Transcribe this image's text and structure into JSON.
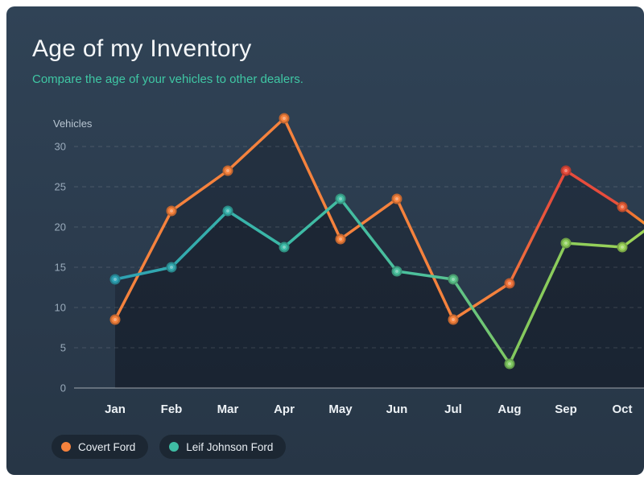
{
  "card": {
    "title": "Age of my Inventory",
    "subtitle": "Compare the age of your vehicles to other dealers.",
    "accent": "#3fc7a4",
    "bg_top": "#304356",
    "bg_bottom": "#273646"
  },
  "chart_data": {
    "type": "line",
    "title": "Age of my Inventory",
    "subtitle": "Compare the age of your vehicles to other dealers.",
    "xlabel": "",
    "ylabel": "Vehicles",
    "categories": [
      "Jan",
      "Feb",
      "Mar",
      "Apr",
      "May",
      "Jun",
      "Jul",
      "Aug",
      "Sep",
      "Oct"
    ],
    "y_ticks": [
      0,
      5,
      10,
      15,
      20,
      25,
      30
    ],
    "ylim": [
      0,
      35
    ],
    "grid": "dashed-horizontal",
    "legend_position": "bottom-left",
    "series": [
      {
        "name": "Covert Ford",
        "color": "#f5823d",
        "values": [
          8.5,
          22,
          27,
          33.5,
          18.5,
          23.5,
          8.5,
          13,
          27,
          22.5
        ],
        "edge_value": 20.5,
        "gradient": [
          [
            0,
            "#f5823d"
          ],
          [
            0.72,
            "#f5823d"
          ],
          [
            0.83,
            "#e74c3c"
          ],
          [
            0.94,
            "#e74c3c"
          ],
          [
            1,
            "#f58a2e"
          ]
        ]
      },
      {
        "name": "Leif Johnson Ford",
        "color": "#3fbca4",
        "values": [
          13.5,
          15,
          22,
          17.5,
          23.5,
          14.5,
          13.5,
          3,
          18,
          17.5
        ],
        "edge_value": 19.5,
        "gradient": [
          [
            0,
            "#2ea1b3"
          ],
          [
            0.33,
            "#3cbaa6"
          ],
          [
            0.6,
            "#4fc19a"
          ],
          [
            0.76,
            "#84c95d"
          ],
          [
            1,
            "#9ed458"
          ]
        ]
      }
    ]
  },
  "legend": {
    "items": [
      {
        "label": "Covert Ford"
      },
      {
        "label": "Leif Johnson Ford"
      }
    ]
  }
}
